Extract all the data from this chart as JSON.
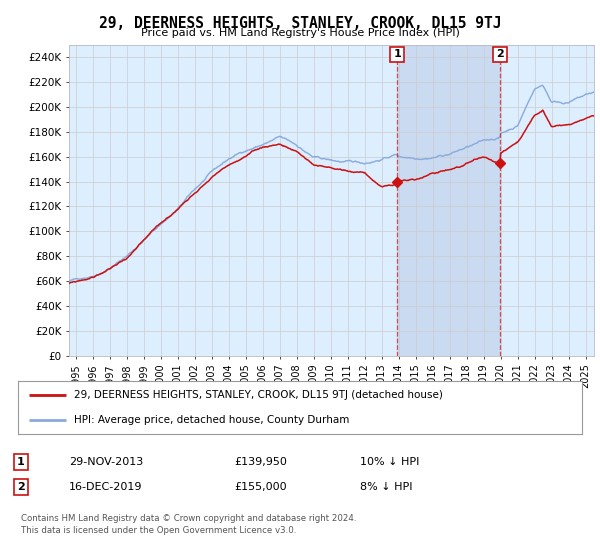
{
  "title": "29, DEERNESS HEIGHTS, STANLEY, CROOK, DL15 9TJ",
  "subtitle": "Price paid vs. HM Land Registry's House Price Index (HPI)",
  "ylabel_ticks": [
    "£0",
    "£20K",
    "£40K",
    "£60K",
    "£80K",
    "£100K",
    "£120K",
    "£140K",
    "£160K",
    "£180K",
    "£200K",
    "£220K",
    "£240K"
  ],
  "ytick_values": [
    0,
    20000,
    40000,
    60000,
    80000,
    100000,
    120000,
    140000,
    160000,
    180000,
    200000,
    220000,
    240000
  ],
  "ylim": [
    0,
    250000
  ],
  "xlim_start": 1994.6,
  "xlim_end": 2025.5,
  "hpi_color": "#88aadd",
  "price_color": "#cc1111",
  "background_color": "#ddeeff",
  "shade_color": "#c8d8f0",
  "legend_label_price": "29, DEERNESS HEIGHTS, STANLEY, CROOK, DL15 9TJ (detached house)",
  "legend_label_hpi": "HPI: Average price, detached house, County Durham",
  "sale1_date": "29-NOV-2013",
  "sale1_price": "£139,950",
  "sale1_note": "10% ↓ HPI",
  "sale1_x": 2013.91,
  "sale1_y": 139950,
  "sale2_date": "16-DEC-2019",
  "sale2_price": "£155,000",
  "sale2_note": "8% ↓ HPI",
  "sale2_x": 2019.96,
  "sale2_y": 155000,
  "footer": "Contains HM Land Registry data © Crown copyright and database right 2024.\nThis data is licensed under the Open Government Licence v3.0.",
  "xticks": [
    1995,
    1996,
    1997,
    1998,
    1999,
    2000,
    2001,
    2002,
    2003,
    2004,
    2005,
    2006,
    2007,
    2008,
    2009,
    2010,
    2011,
    2012,
    2013,
    2014,
    2015,
    2016,
    2017,
    2018,
    2019,
    2020,
    2021,
    2022,
    2023,
    2024,
    2025
  ]
}
